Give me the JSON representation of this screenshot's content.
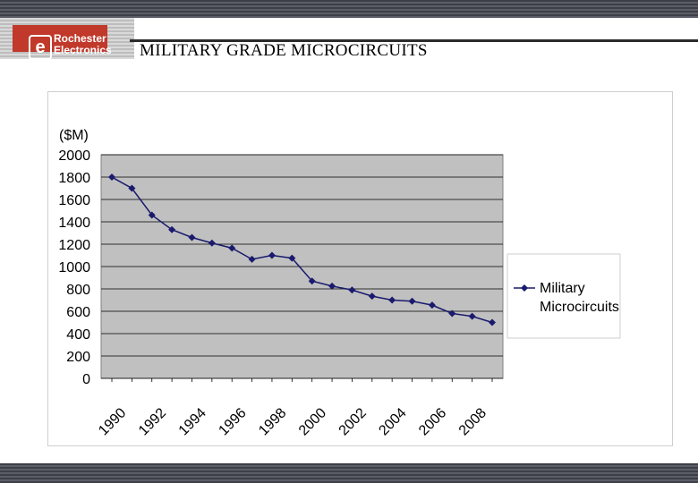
{
  "header": {
    "title": "MILITARY GRADE MICROCIRCUITS",
    "logo_line1": "Rochester",
    "logo_line2": "Electronics"
  },
  "colors": {
    "plot_bg": "#c0c0c0",
    "series": "#1a1a6e",
    "accent": "#c0392b"
  },
  "chart_data": {
    "type": "line",
    "title": "",
    "ylabel": "($M)",
    "xlabel": "",
    "ylim": [
      0,
      2000
    ],
    "yticks": [
      0,
      200,
      400,
      600,
      800,
      1000,
      1200,
      1400,
      1600,
      1800,
      2000
    ],
    "xtick_labels": [
      "1990",
      "1992",
      "1994",
      "1996",
      "1998",
      "2000",
      "2002",
      "2004",
      "2006",
      "2008"
    ],
    "grid": true,
    "legend": "right",
    "series": [
      {
        "name": "Military Microcircuits",
        "x": [
          1990,
          1991,
          1992,
          1993,
          1994,
          1995,
          1996,
          1997,
          1998,
          1999,
          2000,
          2001,
          2002,
          2003,
          2004,
          2005,
          2006,
          2007,
          2008,
          2009
        ],
        "values": [
          1800,
          1700,
          1460,
          1330,
          1260,
          1210,
          1165,
          1065,
          1100,
          1075,
          870,
          825,
          790,
          735,
          700,
          690,
          655,
          580,
          555,
          500
        ]
      }
    ]
  }
}
